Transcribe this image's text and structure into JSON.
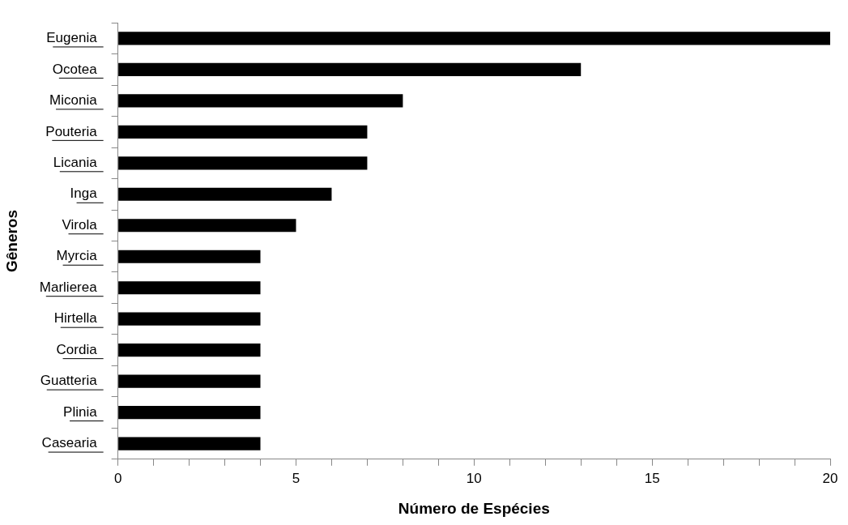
{
  "chart_data": {
    "type": "bar",
    "orientation": "horizontal",
    "xlabel": "Número de Espécies",
    "ylabel": "Gêneros",
    "categories": [
      "Eugenia",
      "Ocotea",
      "Miconia",
      "Pouteria",
      "Licania",
      "Inga",
      "Virola",
      "Myrcia",
      "Marlierea",
      "Hirtella",
      "Cordia",
      "Guatteria",
      "Plinia",
      "Casearia"
    ],
    "values": [
      20,
      13,
      8,
      7,
      7,
      6,
      5,
      4,
      4,
      4,
      4,
      4,
      4,
      4
    ],
    "color": "#000000",
    "xlim": [
      0,
      20
    ],
    "xticks": [
      0,
      {
        "value": 1,
        "label": null
      },
      {
        "value": 2,
        "label": null
      },
      {
        "value": 3,
        "label": null
      },
      {
        "value": 4,
        "label": null
      },
      5,
      {
        "value": 6,
        "label": null
      },
      {
        "value": 7,
        "label": null
      },
      {
        "value": 8,
        "label": null
      },
      {
        "value": 9,
        "label": null
      },
      10,
      {
        "value": 11,
        "label": null
      },
      {
        "value": 12,
        "label": null
      },
      {
        "value": 13,
        "label": null
      },
      {
        "value": 14,
        "label": null
      },
      15,
      {
        "value": 16,
        "label": null
      },
      {
        "value": 17,
        "label": null
      },
      {
        "value": 18,
        "label": null
      },
      {
        "value": 19,
        "label": null
      },
      20
    ],
    "grid": false,
    "legend": false
  }
}
